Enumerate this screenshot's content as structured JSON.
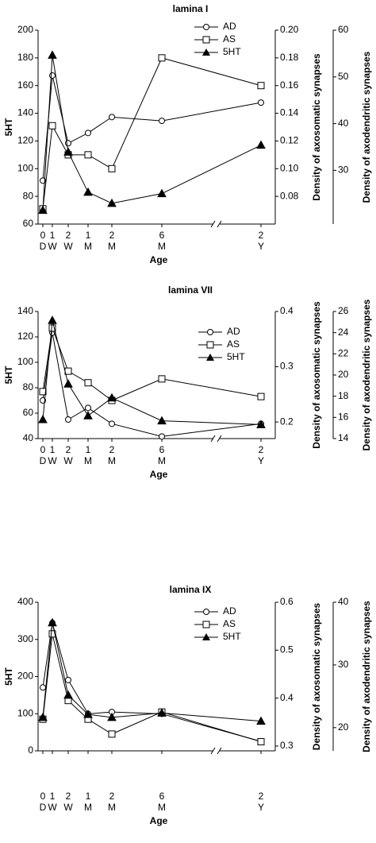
{
  "chart_data": [
    {
      "type": "line",
      "title": "lamina I",
      "x_label": "Age",
      "y_label": "5HT",
      "y2_label": "Density of axosomatic synapses",
      "y3_label": "Density of axodendritic synapses",
      "categories": [
        [
          "0",
          "D"
        ],
        [
          "1",
          "W"
        ],
        [
          "2",
          "W"
        ],
        [
          "1",
          "M"
        ],
        [
          "2",
          "M"
        ],
        [
          "6",
          "M"
        ],
        [
          "2",
          "Y"
        ]
      ],
      "ylim": [
        60,
        200
      ],
      "yticks": [
        60,
        80,
        100,
        120,
        140,
        160,
        180,
        200
      ],
      "y2lim": [
        0.06,
        0.2
      ],
      "y2ticks": [
        0.08,
        {
          "value": 0.1,
          "label": "0.10"
        },
        0.12,
        0.14,
        0.16,
        0.18,
        {
          "value": 0.2,
          "label": "0.20"
        }
      ],
      "y3lim": [
        18.5,
        60
      ],
      "y3ticks": [
        30,
        40,
        50,
        60
      ],
      "series": [
        {
          "name": "AD",
          "color": "#000000",
          "marker": "circle",
          "axis": "y3",
          "values": [
            27.8,
            50.3,
            35.8,
            38,
            41.4,
            40.6,
            44.5
          ]
        },
        {
          "name": "AS",
          "color": "#000000",
          "marker": "square",
          "axis": "y2",
          "values": [
            0.071,
            0.131,
            0.11,
            0.11,
            0.1,
            0.18,
            0.16
          ]
        },
        {
          "name": "5HT",
          "color": "#000000",
          "marker": "triangle",
          "axis": "y",
          "values": [
            70,
            182,
            112,
            83,
            75,
            82,
            117
          ]
        }
      ]
    },
    {
      "type": "line",
      "title": "lamina VII",
      "x_label": "Age",
      "y_label": "5HT",
      "y2_label": "Density of axosomatic synapses",
      "y3_label": "Density of axodendritic synapses",
      "categories": [
        [
          "0",
          "D"
        ],
        [
          "1",
          "W"
        ],
        [
          "2",
          "W"
        ],
        [
          "1",
          "M"
        ],
        [
          "2",
          "M"
        ],
        [
          "6",
          "M"
        ],
        [
          "2",
          "Y"
        ]
      ],
      "ylim": [
        40,
        140
      ],
      "yticks": [
        40,
        60,
        80,
        100,
        120,
        140
      ],
      "y2lim": [
        0.17,
        0.4
      ],
      "y2ticks": [
        0.2,
        0.3,
        0.4
      ],
      "y3lim": [
        14,
        26
      ],
      "y3ticks": [
        14,
        16,
        18,
        20,
        22,
        24,
        26
      ],
      "series": [
        {
          "name": "AD",
          "color": "#000000",
          "marker": "circle",
          "axis": "y3",
          "values": [
            17.6,
            24.0,
            15.8,
            16.9,
            15.4,
            14.2,
            15.4
          ]
        },
        {
          "name": "AS",
          "color": "#000000",
          "marker": "square",
          "axis": "y2",
          "values": [
            0.255,
            0.37,
            0.292,
            0.271,
            0.239,
            0.278,
            0.246
          ]
        },
        {
          "name": "5HT",
          "color": "#000000",
          "marker": "triangle",
          "axis": "y",
          "values": [
            55,
            133,
            83,
            58,
            72,
            54,
            51
          ]
        }
      ]
    },
    {
      "type": "line",
      "title": "lamina IX",
      "x_label": "Age",
      "y_label": "5HT",
      "y2_label": "Density of axosomatic synapses",
      "y3_label": "Density of axodendritic synapses",
      "categories": [
        [
          "0",
          "D"
        ],
        [
          "1",
          "W"
        ],
        [
          "2",
          "W"
        ],
        [
          "1",
          "M"
        ],
        [
          "2",
          "M"
        ],
        [
          "6",
          "M"
        ],
        [
          "2",
          "Y"
        ]
      ],
      "ylim": [
        0,
        400
      ],
      "yticks": [
        0,
        100,
        200,
        300,
        400
      ],
      "y2lim": [
        0.29,
        0.6
      ],
      "y2ticks": [
        0.3,
        0.4,
        0.5,
        0.6
      ],
      "y3lim": [
        16.3,
        40
      ],
      "y3ticks": [
        20,
        30,
        40
      ],
      "series": [
        {
          "name": "AD",
          "color": "#000000",
          "marker": "circle",
          "axis": "y3",
          "values": [
            26.4,
            36.7,
            27.6,
            22.2,
            22.5,
            22.2,
            17.8
          ]
        },
        {
          "name": "AS",
          "color": "#000000",
          "marker": "square",
          "axis": "y2",
          "values": [
            0.356,
            0.534,
            0.395,
            0.356,
            0.325,
            0.371,
            0.309
          ]
        },
        {
          "name": "5HT",
          "color": "#000000",
          "marker": "triangle",
          "axis": "y",
          "values": [
            90,
            345,
            150,
            98,
            90,
            102,
            80
          ]
        }
      ]
    }
  ]
}
